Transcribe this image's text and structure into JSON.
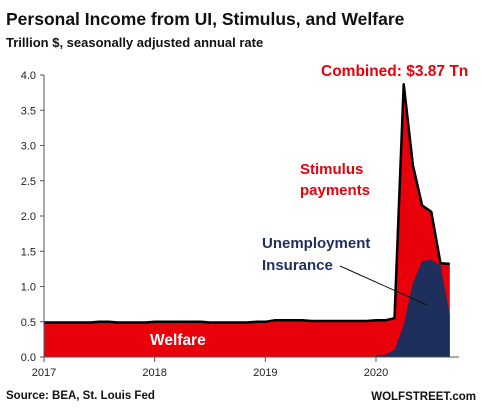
{
  "chart_data": {
    "type": "area",
    "title": "Personal Income from UI, Stimulus, and Welfare",
    "subtitle": "Trillion $, seasonally adjusted annual rate",
    "ylim": [
      0,
      4.0
    ],
    "yticks": [
      0.0,
      0.5,
      1.0,
      1.5,
      2.0,
      2.5,
      3.0,
      3.5,
      4.0
    ],
    "ytick_labels": [
      "0.0",
      "0.5",
      "1.0",
      "1.5",
      "2.0",
      "2.5",
      "3.0",
      "3.5",
      "4.0"
    ],
    "xlim": [
      2017.0,
      2020.75
    ],
    "xticks": [
      2017,
      2018,
      2019,
      2020
    ],
    "xtick_labels": [
      "2017",
      "2018",
      "2019",
      "2020"
    ],
    "grid": false,
    "colors": {
      "combined": "#e8000b",
      "unemployment_insurance": "#1f2f5c",
      "combined_line": "#000000"
    },
    "series": [
      {
        "name": "Combined",
        "x": [
          2017.0,
          2017.083,
          2017.167,
          2017.25,
          2017.333,
          2017.417,
          2017.5,
          2017.583,
          2017.667,
          2017.75,
          2017.833,
          2017.917,
          2018.0,
          2018.083,
          2018.167,
          2018.25,
          2018.333,
          2018.417,
          2018.5,
          2018.583,
          2018.667,
          2018.75,
          2018.833,
          2018.917,
          2019.0,
          2019.083,
          2019.167,
          2019.25,
          2019.333,
          2019.417,
          2019.5,
          2019.583,
          2019.667,
          2019.75,
          2019.833,
          2019.917,
          2020.0,
          2020.083,
          2020.167,
          2020.25,
          2020.333,
          2020.417,
          2020.5,
          2020.583,
          2020.667
        ],
        "values": [
          0.49,
          0.49,
          0.49,
          0.49,
          0.49,
          0.49,
          0.5,
          0.5,
          0.49,
          0.49,
          0.49,
          0.49,
          0.5,
          0.5,
          0.5,
          0.5,
          0.5,
          0.5,
          0.49,
          0.49,
          0.49,
          0.49,
          0.49,
          0.5,
          0.5,
          0.52,
          0.52,
          0.52,
          0.52,
          0.51,
          0.51,
          0.51,
          0.51,
          0.51,
          0.51,
          0.51,
          0.52,
          0.52,
          0.55,
          3.87,
          2.72,
          2.15,
          2.06,
          1.33,
          1.32
        ]
      },
      {
        "name": "Unemployment Insurance",
        "x": [
          2020.0,
          2020.083,
          2020.167,
          2020.25,
          2020.333,
          2020.417,
          2020.5,
          2020.583,
          2020.667
        ],
        "values": [
          0.03,
          0.03,
          0.1,
          0.45,
          1.05,
          1.36,
          1.38,
          1.3,
          0.6
        ]
      }
    ],
    "annotations": [
      {
        "text": "Combined: $3.87 Tn",
        "color": "#e8000b"
      },
      {
        "text": "Stimulus",
        "color": "#e8000b"
      },
      {
        "text": "payments",
        "color": "#e8000b"
      },
      {
        "text": "Unemployment",
        "color": "#1f2f5c"
      },
      {
        "text": "Insurance",
        "color": "#1f2f5c"
      },
      {
        "text": "Welfare",
        "color": "#ffffff"
      }
    ]
  },
  "footer": {
    "source": "Source: BEA, St. Louis Fed",
    "brand": "WOLFSTREET.com"
  }
}
